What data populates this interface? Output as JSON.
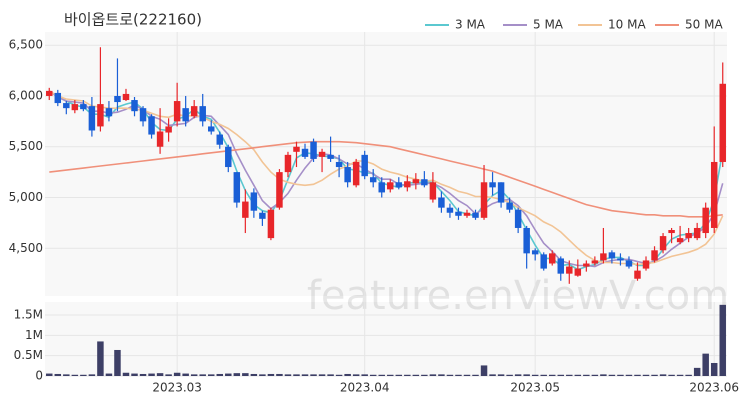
{
  "chart_data": {
    "type": "candlestick",
    "title": "바이옵트로(222160)",
    "watermark": "feature.enViewV.com",
    "categories": [
      null,
      null,
      null,
      null,
      null,
      null,
      null,
      null,
      null,
      null,
      null,
      null,
      null,
      null,
      null,
      "2023.03",
      null,
      null,
      null,
      null,
      null,
      null,
      null,
      null,
      null,
      null,
      null,
      null,
      null,
      null,
      null,
      null,
      null,
      null,
      null,
      null,
      null,
      "2023.04",
      null,
      null,
      null,
      null,
      null,
      null,
      null,
      null,
      null,
      null,
      null,
      null,
      null,
      null,
      null,
      null,
      null,
      null,
      null,
      "2023.05",
      null,
      null,
      null,
      null,
      null,
      null,
      null,
      null,
      null,
      null,
      null,
      null,
      null,
      null,
      null,
      null,
      null,
      null,
      null,
      null,
      "2023.06",
      null
    ],
    "up_color": "#e8262a",
    "down_color": "#1a5fd6",
    "open": [
      6000,
      6030,
      5930,
      5860,
      5920,
      5900,
      5700,
      5880,
      6000,
      5960,
      5960,
      5880,
      5800,
      5500,
      5640,
      5750,
      5880,
      5800,
      5900,
      5700,
      5620,
      5500,
      5250,
      4800,
      5050,
      4850,
      4600,
      4900,
      5250,
      5450,
      5480,
      5550,
      5400,
      5420,
      5350,
      5300,
      5120,
      5420,
      5200,
      5150,
      5080,
      5150,
      5100,
      5140,
      5180,
      4980,
      5000,
      4900,
      4860,
      4820,
      4850,
      4800,
      5150,
      5150,
      4950,
      4880,
      4700,
      4480,
      4440,
      4350,
      4400,
      4250,
      4230,
      4320,
      4350,
      4380,
      4460,
      4400,
      4380,
      4200,
      4300,
      4380,
      4480,
      4650,
      4560,
      4600,
      4600,
      4650,
      4700,
      5350
    ],
    "high": [
      6080,
      6060,
      5950,
      5960,
      5960,
      5990,
      6480,
      5950,
      6370,
      6070,
      5990,
      5900,
      5820,
      5880,
      5780,
      6130,
      6000,
      5960,
      6020,
      5760,
      5650,
      5520,
      5250,
      5080,
      5090,
      4870,
      4900,
      5280,
      5450,
      5550,
      5530,
      5580,
      5480,
      5600,
      5420,
      5350,
      5380,
      5460,
      5280,
      5200,
      5180,
      5200,
      5220,
      5240,
      5260,
      5250,
      5060,
      4940,
      4900,
      4880,
      4880,
      5320,
      5250,
      5150,
      5000,
      4900,
      4720,
      4500,
      4460,
      4480,
      4420,
      4380,
      4390,
      4380,
      4420,
      4700,
      4480,
      4450,
      4420,
      4360,
      4420,
      4520,
      4650,
      4700,
      4720,
      4700,
      4750,
      4950,
      5700,
      6330
    ],
    "low": [
      5960,
      5900,
      5820,
      5830,
      5850,
      5600,
      5650,
      5750,
      5850,
      5950,
      5800,
      5700,
      5580,
      5430,
      5550,
      5700,
      5700,
      5780,
      5700,
      5620,
      5480,
      5250,
      4900,
      4650,
      4800,
      4720,
      4580,
      4880,
      5200,
      5300,
      5380,
      5350,
      5250,
      5350,
      5200,
      5100,
      5100,
      5180,
      5100,
      5000,
      5050,
      5080,
      5060,
      5080,
      5100,
      4950,
      4850,
      4800,
      4780,
      4800,
      4780,
      4780,
      5020,
      4900,
      4850,
      4650,
      4300,
      4380,
      4280,
      4330,
      4180,
      4150,
      4220,
      4270,
      4330,
      4350,
      4350,
      4330,
      4300,
      4180,
      4280,
      4360,
      4450,
      4550,
      4540,
      4560,
      4580,
      4600,
      4650,
      5300
    ],
    "close": [
      6050,
      5930,
      5880,
      5920,
      5870,
      5660,
      5920,
      5800,
      5940,
      6020,
      5850,
      5750,
      5620,
      5650,
      5700,
      5950,
      5750,
      5900,
      5750,
      5650,
      5520,
      5300,
      4950,
      4960,
      4870,
      4790,
      4880,
      5250,
      5420,
      5500,
      5400,
      5380,
      5450,
      5380,
      5300,
      5150,
      5350,
      5210,
      5150,
      5050,
      5150,
      5100,
      5160,
      5180,
      5120,
      5150,
      4900,
      4850,
      4820,
      4850,
      4800,
      5150,
      5100,
      4950,
      4880,
      4700,
      4450,
      4440,
      4300,
      4450,
      4250,
      4320,
      4300,
      4350,
      4380,
      4450,
      4400,
      4380,
      4320,
      4280,
      4380,
      4480,
      4620,
      4680,
      4600,
      4650,
      4700,
      4900,
      5350,
      6120
    ],
    "ylim": [
      4030,
      6630
    ],
    "yticks": [
      {
        "value": 4500,
        "label": "4,500"
      },
      {
        "value": 5000,
        "label": "5,000"
      },
      {
        "value": 5500,
        "label": "5,500"
      },
      {
        "value": 6000,
        "label": "6,000"
      },
      {
        "value": 6500,
        "label": "6,500"
      }
    ],
    "series": [
      {
        "name": "3 MA",
        "color": "#5bc8d0",
        "values": [
          6050,
          5990,
          5950,
          5910,
          5890,
          5820,
          5820,
          5790,
          5890,
          5920,
          5940,
          5870,
          5740,
          5670,
          5660,
          5770,
          5800,
          5870,
          5800,
          5770,
          5640,
          5490,
          5260,
          5070,
          4930,
          4870,
          4850,
          4970,
          5180,
          5390,
          5440,
          5430,
          5410,
          5400,
          5380,
          5280,
          5270,
          5240,
          5240,
          5140,
          5120,
          5100,
          5140,
          5150,
          5150,
          5150,
          5060,
          4970,
          4860,
          4840,
          4820,
          4930,
          5020,
          5070,
          4980,
          4840,
          4680,
          4530,
          4400,
          4400,
          4330,
          4340,
          4290,
          4320,
          4340,
          4390,
          4410,
          4410,
          4370,
          4330,
          4330,
          4380,
          4490,
          4590,
          4630,
          4640,
          4650,
          4750,
          4980,
          5460
        ]
      },
      {
        "name": "5 MA",
        "color": "#a58fc8",
        "values": [
          6050,
          5990,
          5950,
          5940,
          5930,
          5850,
          5850,
          5830,
          5840,
          5870,
          5910,
          5870,
          5800,
          5770,
          5710,
          5720,
          5730,
          5790,
          5810,
          5800,
          5710,
          5620,
          5430,
          5270,
          5120,
          4970,
          4890,
          4950,
          5040,
          5170,
          5290,
          5390,
          5430,
          5420,
          5380,
          5330,
          5330,
          5280,
          5230,
          5180,
          5180,
          5130,
          5120,
          5130,
          5140,
          5140,
          5100,
          5040,
          4970,
          4920,
          4840,
          4890,
          4940,
          4970,
          4980,
          4920,
          4820,
          4680,
          4550,
          4470,
          4380,
          4350,
          4330,
          4330,
          4320,
          4360,
          4380,
          4390,
          4390,
          4370,
          4350,
          4370,
          4420,
          4490,
          4550,
          4610,
          4650,
          4710,
          4840,
          5140
        ]
      },
      {
        "name": "10 MA",
        "color": "#f2c495",
        "values": [
          6050,
          6000,
          5970,
          5960,
          5950,
          5900,
          5890,
          5880,
          5880,
          5880,
          5870,
          5860,
          5830,
          5800,
          5790,
          5820,
          5800,
          5810,
          5790,
          5750,
          5720,
          5680,
          5620,
          5550,
          5470,
          5350,
          5250,
          5180,
          5150,
          5130,
          5120,
          5130,
          5170,
          5230,
          5280,
          5310,
          5360,
          5360,
          5330,
          5280,
          5250,
          5230,
          5200,
          5180,
          5160,
          5170,
          5130,
          5100,
          5060,
          5040,
          5010,
          5010,
          5000,
          4980,
          4950,
          4900,
          4860,
          4820,
          4760,
          4720,
          4660,
          4580,
          4500,
          4430,
          4380,
          4360,
          4360,
          4350,
          4350,
          4340,
          4350,
          4360,
          4390,
          4420,
          4440,
          4460,
          4490,
          4540,
          4640,
          4820
        ]
      },
      {
        "name": "50 MA",
        "color": "#f0907a",
        "values": [
          5250,
          5260,
          5270,
          5280,
          5290,
          5300,
          5310,
          5320,
          5330,
          5340,
          5350,
          5360,
          5370,
          5380,
          5390,
          5400,
          5410,
          5420,
          5430,
          5440,
          5450,
          5460,
          5470,
          5480,
          5490,
          5500,
          5510,
          5520,
          5530,
          5540,
          5545,
          5550,
          5550,
          5550,
          5550,
          5545,
          5540,
          5530,
          5520,
          5510,
          5500,
          5480,
          5460,
          5440,
          5420,
          5400,
          5380,
          5360,
          5340,
          5320,
          5300,
          5280,
          5260,
          5230,
          5200,
          5170,
          5140,
          5110,
          5080,
          5050,
          5020,
          4990,
          4960,
          4930,
          4910,
          4890,
          4870,
          4860,
          4850,
          4840,
          4830,
          4830,
          4820,
          4820,
          4820,
          4810,
          4810,
          4810,
          4820,
          4830
        ]
      }
    ],
    "volume": {
      "color": "#3d3f66",
      "values": [
        60000,
        50000,
        40000,
        30000,
        30000,
        40000,
        850000,
        60000,
        640000,
        80000,
        60000,
        50000,
        60000,
        70000,
        40000,
        80000,
        60000,
        40000,
        40000,
        40000,
        50000,
        60000,
        70000,
        70000,
        50000,
        40000,
        50000,
        50000,
        40000,
        40000,
        40000,
        40000,
        40000,
        40000,
        30000,
        50000,
        40000,
        40000,
        30000,
        30000,
        30000,
        30000,
        30000,
        30000,
        30000,
        40000,
        40000,
        30000,
        30000,
        30000,
        30000,
        260000,
        40000,
        40000,
        30000,
        40000,
        40000,
        30000,
        30000,
        30000,
        30000,
        30000,
        30000,
        30000,
        30000,
        40000,
        30000,
        30000,
        30000,
        30000,
        30000,
        30000,
        40000,
        30000,
        30000,
        30000,
        200000,
        550000,
        320000,
        1750000
      ],
      "ylim": [
        0,
        1820000
      ],
      "yticks": [
        0,
        {
          "value": 500000,
          "label": "0.5M"
        },
        {
          "value": 1000000,
          "label": "1M"
        },
        {
          "value": 1500000,
          "label": "1.5M"
        }
      ]
    },
    "grid": true
  }
}
